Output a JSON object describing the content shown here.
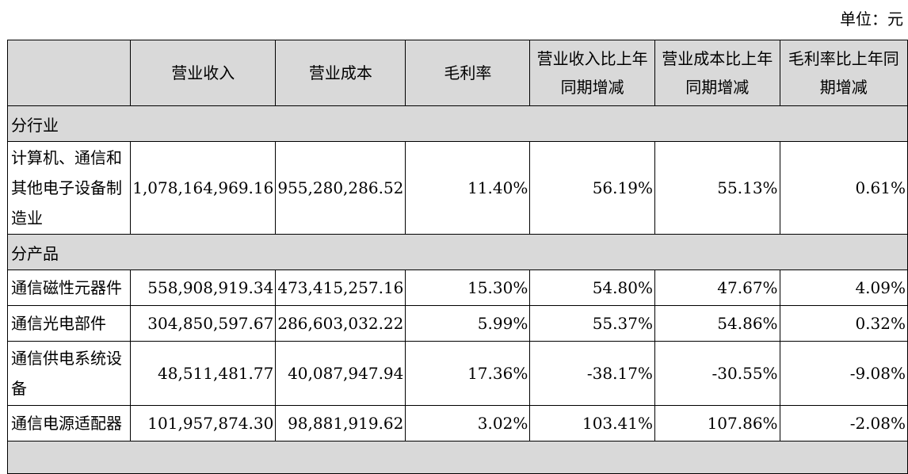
{
  "unit_label": "单位：元",
  "headers": {
    "col0": "",
    "col1": "营业收入",
    "col2": "营业成本",
    "col3": "毛利率",
    "col4": "营业收入比上年同期增减",
    "col5": "营业成本比上年同期增减",
    "col6": "毛利率比上年同期增减"
  },
  "sections": {
    "industry": "分行业",
    "product": "分产品"
  },
  "rows": {
    "industry_0": {
      "label": "计算机、通信和其他电子设备制造业",
      "revenue": "1,078,164,969.16",
      "cost": "955,280,286.52",
      "margin": "11.40%",
      "rev_change": "56.19%",
      "cost_change": "55.13%",
      "margin_change": "0.61%"
    },
    "product_0": {
      "label": "通信磁性元器件",
      "revenue": "558,908,919.34",
      "cost": "473,415,257.16",
      "margin": "15.30%",
      "rev_change": "54.80%",
      "cost_change": "47.67%",
      "margin_change": "4.09%"
    },
    "product_1": {
      "label": "通信光电部件",
      "revenue": "304,850,597.67",
      "cost": "286,603,032.22",
      "margin": "5.99%",
      "rev_change": "55.37%",
      "cost_change": "54.86%",
      "margin_change": "0.32%"
    },
    "product_2": {
      "label": "通信供电系统设备",
      "revenue": "48,511,481.77",
      "cost": "40,087,947.94",
      "margin": "17.36%",
      "rev_change": "-38.17%",
      "cost_change": "-30.55%",
      "margin_change": "-9.08%"
    },
    "product_3": {
      "label": "通信电源适配器",
      "revenue": "101,957,874.30",
      "cost": "98,881,919.62",
      "margin": "3.02%",
      "rev_change": "103.41%",
      "cost_change": "107.86%",
      "margin_change": "-2.08%"
    }
  }
}
